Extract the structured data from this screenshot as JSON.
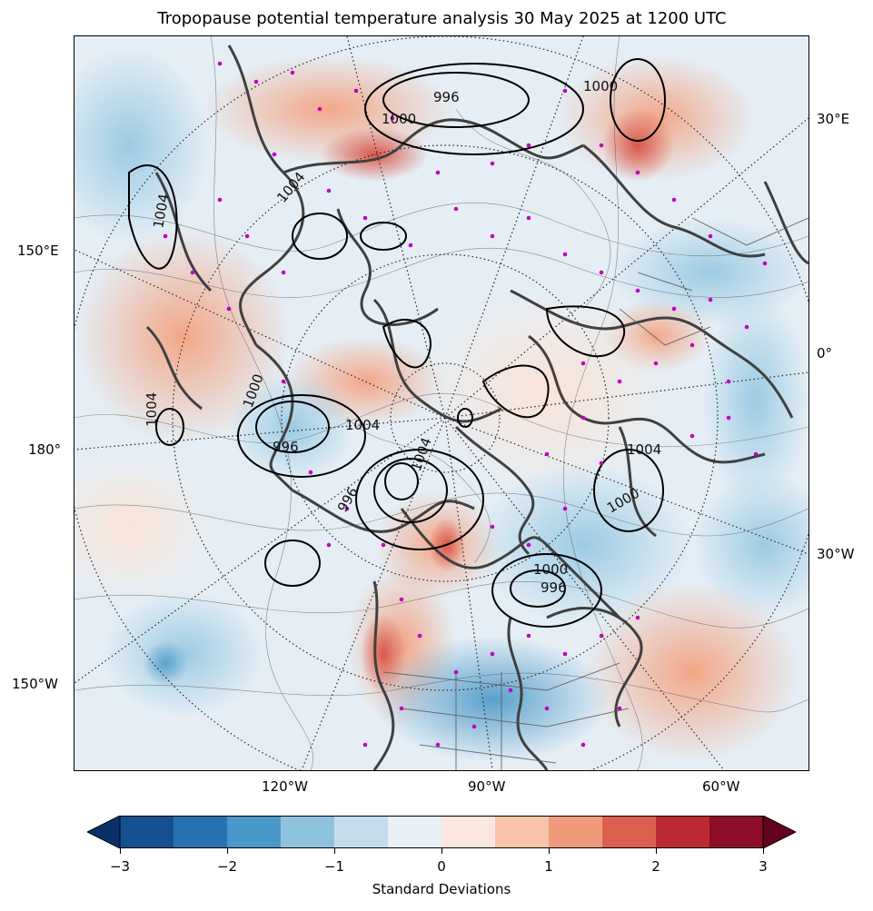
{
  "title": "Tropopause potential temperature analysis 30 May 2025 at 1200 UTC",
  "longitude_labels": {
    "e30": "30°E",
    "e150": "150°E",
    "zero": "0°",
    "d180": "180°",
    "w30": "30°W",
    "w150": "150°W",
    "w120": "120°W",
    "w90": "90°W",
    "w60": "60°W"
  },
  "pressure_labels": [
    "996",
    "1000",
    "1004",
    "1004",
    "1004",
    "1004",
    "1000",
    "996",
    "1004",
    "1000",
    "996",
    "1000",
    "996",
    "1000",
    "1004"
  ],
  "colorbar": {
    "label": "Standard Deviations",
    "ticks": [
      "−3",
      "−2",
      "−1",
      "0",
      "1",
      "2",
      "3"
    ],
    "range": [
      -3,
      3
    ],
    "colors": [
      "#08306b",
      "#15508f",
      "#2a71b2",
      "#4a98c9",
      "#8fc2de",
      "#c3ddec",
      "#e8f0f6",
      "#fbe7de",
      "#f8c3aa",
      "#f09a7c",
      "#dc6050",
      "#bb2a33",
      "#8c0d25",
      "#67001f"
    ],
    "extend": "both"
  },
  "colors": {
    "coast": "#404040",
    "mslp_contour": "#000000",
    "stations": "#c000c0"
  }
}
